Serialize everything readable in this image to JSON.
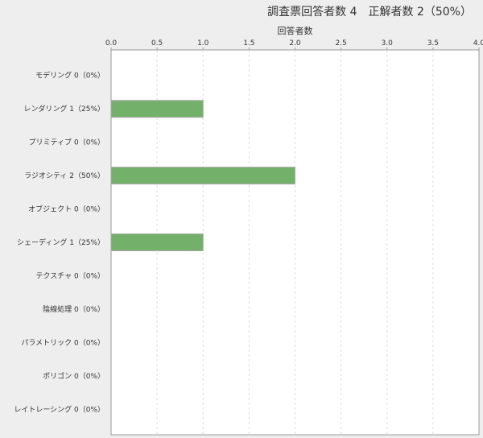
{
  "chart_data": {
    "type": "bar",
    "orientation": "horizontal",
    "title": "調査票回答者数 4　正解者数 2（50%）",
    "xlabel": "回答者数",
    "xlim": [
      0,
      4
    ],
    "xticks": [
      "0.0",
      "0.5",
      "1.0",
      "1.5",
      "2.0",
      "2.5",
      "3.0",
      "3.5",
      "4.0"
    ],
    "grid": true,
    "bar_color": "#73b06a",
    "categories": [
      "モデリング 0（0%）",
      "レンダリング 1（25%）",
      "プリミティブ 0（0%）",
      "ラジオシティ 2（50%）",
      "オブジェクト 0（0%）",
      "シェーディング 1（25%）",
      "テクスチャ 0（0%）",
      "陰線処理 0（0%）",
      "パラメトリック 0（0%）",
      "ポリゴン 0（0%）",
      "レイトレーシング 0（0%）"
    ],
    "values": [
      0,
      1,
      0,
      2,
      0,
      1,
      0,
      0,
      0,
      0,
      0
    ]
  }
}
